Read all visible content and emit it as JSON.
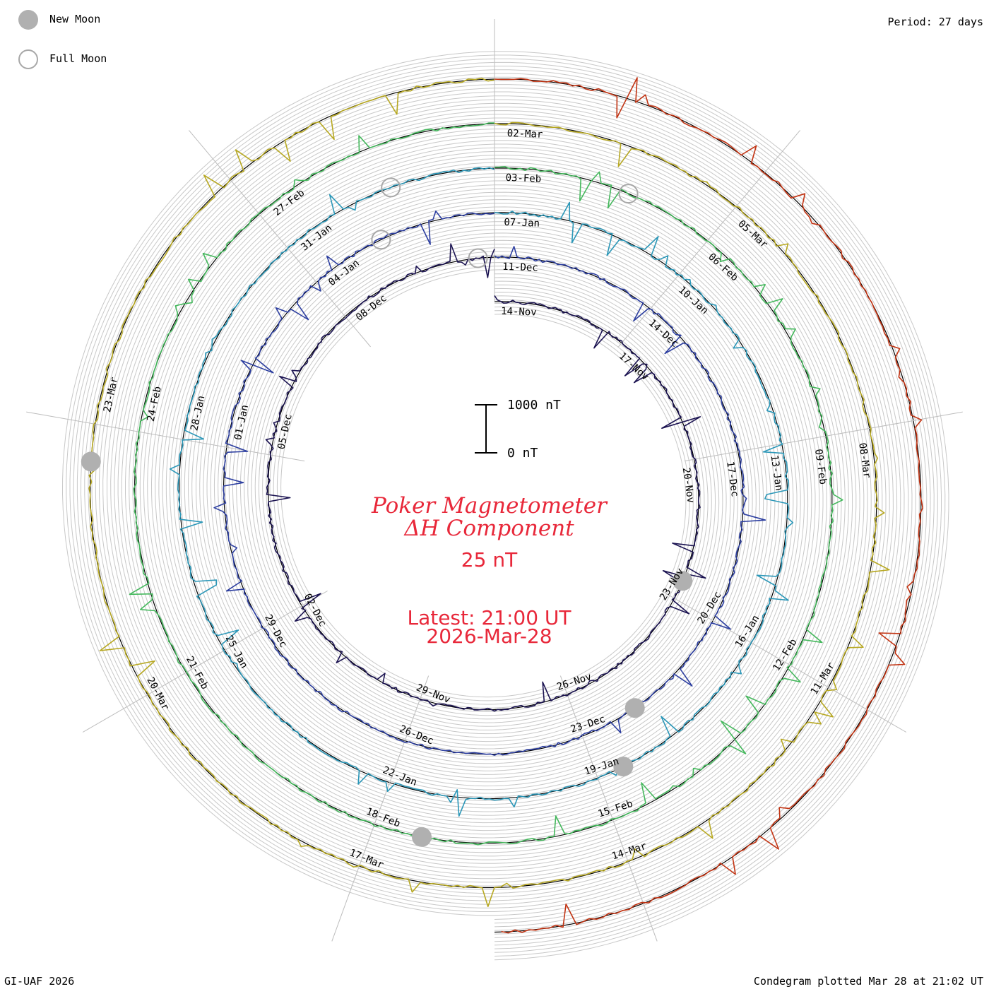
{
  "header": {
    "period": "Period: 27 days"
  },
  "legend": {
    "new_moon_label": "New Moon",
    "full_moon_label": "Full Moon",
    "new_moon_color": "#b0b0b0",
    "full_moon_color": "#a8a8a8"
  },
  "center": {
    "title_line1": "Poker Magnetometer",
    "title_line2": "ΔH Component",
    "ring_spacing": "25 nT",
    "latest_time": "Latest: 21:00 UT",
    "latest_date": "2026-Mar-28"
  },
  "scale_bar": {
    "top_label": "1000 nT",
    "bottom_label": "0 nT"
  },
  "footer": {
    "credit": "GI-UAF 2026",
    "plotted": "Condegram plotted Mar 28 at 21:02 UT"
  },
  "chart_data": {
    "type": "condegram",
    "period_days": 27,
    "scale_nT": [
      0,
      1000
    ],
    "grid_ring_interval": "25 nT",
    "rotations": [
      {
        "color": "#1c1452",
        "date_labels": [
          "14-Nov",
          "17-Nov",
          "20-Nov",
          "23-Nov",
          "26-Nov",
          "29-Nov",
          "02-Dec",
          "05-Dec",
          "08-Dec"
        ]
      },
      {
        "color": "#2c3ea0",
        "date_labels": [
          "11-Dec",
          "14-Dec",
          "17-Dec",
          "20-Dec",
          "23-Dec",
          "26-Dec",
          "29-Dec",
          "01-Jan",
          "04-Jan"
        ]
      },
      {
        "color": "#2b97b8",
        "date_labels": [
          "07-Jan",
          "10-Jan",
          "13-Jan",
          "16-Jan",
          "19-Jan",
          "22-Jan",
          "25-Jan",
          "28-Jan",
          "31-Jan"
        ]
      },
      {
        "color": "#44b85c",
        "date_labels": [
          "03-Feb",
          "06-Feb",
          "09-Feb",
          "12-Feb",
          "15-Feb",
          "18-Feb",
          "21-Feb",
          "24-Feb",
          "27-Feb"
        ]
      },
      {
        "color": "#b7a822",
        "date_labels": [
          "02-Mar",
          "05-Mar",
          "08-Mar",
          "11-Mar",
          "14-Mar",
          "17-Mar",
          "20-Mar",
          "23-Mar"
        ]
      },
      {
        "color": "#c23312",
        "date_labels": []
      }
    ],
    "new_moons": [
      {
        "rotation": 0,
        "day": 8.6
      },
      {
        "rotation": 1,
        "day": 11.0
      },
      {
        "rotation": 2,
        "day": 11.6
      },
      {
        "rotation": 3,
        "day": 14.4
      },
      {
        "rotation": 4,
        "day": 20.6
      }
    ],
    "full_moons": [
      {
        "rotation": 0,
        "day": 26.7
      },
      {
        "rotation": 1,
        "day": 25.2
      },
      {
        "rotation": 2,
        "day": 25.6
      },
      {
        "rotation": 3,
        "day": 1.8
      }
    ]
  }
}
